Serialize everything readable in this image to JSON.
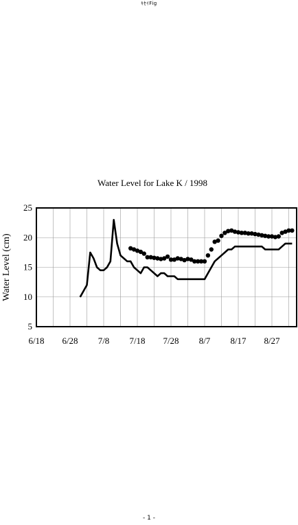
{
  "header": {
    "text": "ｷｾｲFig"
  },
  "footer": {
    "page_label": "- 1 -"
  },
  "chart_data": {
    "type": "line",
    "title": "Water Level for Lake K / 1998",
    "xlabel": "",
    "ylabel": "Water Level (cm)",
    "ylim": [
      5,
      25
    ],
    "yticks": [
      "5",
      "10",
      "15",
      "20",
      "25"
    ],
    "x_ticks": [
      "6/18",
      "6/28",
      "7/8",
      "7/18",
      "7/28",
      "8/7",
      "8/17",
      "8/27"
    ],
    "x_dates": [
      "6/18",
      "6/28",
      "7/8",
      "7/18",
      "7/28",
      "8/7",
      "8/17",
      "8/27"
    ],
    "grid": true,
    "legend": "none",
    "series": [
      {
        "style": "line",
        "color": "#000000",
        "x": [
          "7/1",
          "7/2",
          "7/3",
          "7/4",
          "7/5",
          "7/6",
          "7/7",
          "7/8",
          "7/9",
          "7/10",
          "7/11",
          "7/12",
          "7/13",
          "7/14",
          "7/15",
          "7/16",
          "7/17",
          "7/18",
          "7/19",
          "7/20",
          "7/21",
          "7/22",
          "7/23",
          "7/24",
          "7/25",
          "7/26",
          "7/27",
          "7/28",
          "7/29",
          "7/30",
          "7/31",
          "8/1",
          "8/2",
          "8/3",
          "8/4",
          "8/5",
          "8/6",
          "8/7",
          "8/8",
          "8/9",
          "8/10",
          "8/11",
          "8/12",
          "8/13",
          "8/14",
          "8/15",
          "8/16",
          "8/17",
          "8/18",
          "8/19",
          "8/20",
          "8/21",
          "8/22",
          "8/23",
          "8/24",
          "8/25",
          "8/26",
          "8/27",
          "8/28",
          "8/29",
          "8/30",
          "8/31",
          "9/1",
          "9/2"
        ],
        "y": [
          10,
          11,
          12,
          17.5,
          16.5,
          15,
          14.5,
          14.5,
          15,
          16,
          23,
          19,
          17,
          16.5,
          16,
          16,
          15,
          14.5,
          14,
          15,
          15,
          14.5,
          14,
          13.5,
          14,
          14,
          13.5,
          13.5,
          13.5,
          13,
          13,
          13,
          13,
          13,
          13,
          13,
          13,
          13,
          14,
          15,
          16,
          16.5,
          17,
          17.5,
          18,
          18,
          18.5,
          18.5,
          18.5,
          18.5,
          18.5,
          18.5,
          18.5,
          18.5,
          18.5,
          18,
          18,
          18,
          18,
          18,
          18.5,
          19,
          19,
          19
        ]
      },
      {
        "style": "markers",
        "color": "#000000",
        "x": [
          "7/16",
          "7/17",
          "7/18",
          "7/19",
          "7/20",
          "7/21",
          "7/22",
          "7/23",
          "7/24",
          "7/25",
          "7/26",
          "7/27",
          "7/28",
          "7/29",
          "7/30",
          "7/31",
          "8/1",
          "8/2",
          "8/3",
          "8/4",
          "8/5",
          "8/6",
          "8/7",
          "8/8",
          "8/9",
          "8/10",
          "8/11",
          "8/12",
          "8/13",
          "8/14",
          "8/15",
          "8/16",
          "8/17",
          "8/18",
          "8/19",
          "8/20",
          "8/21",
          "8/22",
          "8/23",
          "8/24",
          "8/25",
          "8/26",
          "8/27",
          "8/28",
          "8/29",
          "8/30",
          "8/31",
          "9/1",
          "9/2"
        ],
        "y": [
          18.2,
          18,
          17.8,
          17.6,
          17.3,
          16.7,
          16.7,
          16.6,
          16.5,
          16.4,
          16.5,
          16.8,
          16.3,
          16.3,
          16.5,
          16.4,
          16.2,
          16.4,
          16.3,
          16,
          16,
          16,
          16,
          17,
          18,
          19.3,
          19.5,
          20.3,
          20.8,
          21.1,
          21.2,
          21,
          20.9,
          20.8,
          20.8,
          20.7,
          20.7,
          20.6,
          20.5,
          20.4,
          20.3,
          20.2,
          20.2,
          20.1,
          20.2,
          20.8,
          21,
          21.2,
          21.2
        ]
      }
    ]
  }
}
